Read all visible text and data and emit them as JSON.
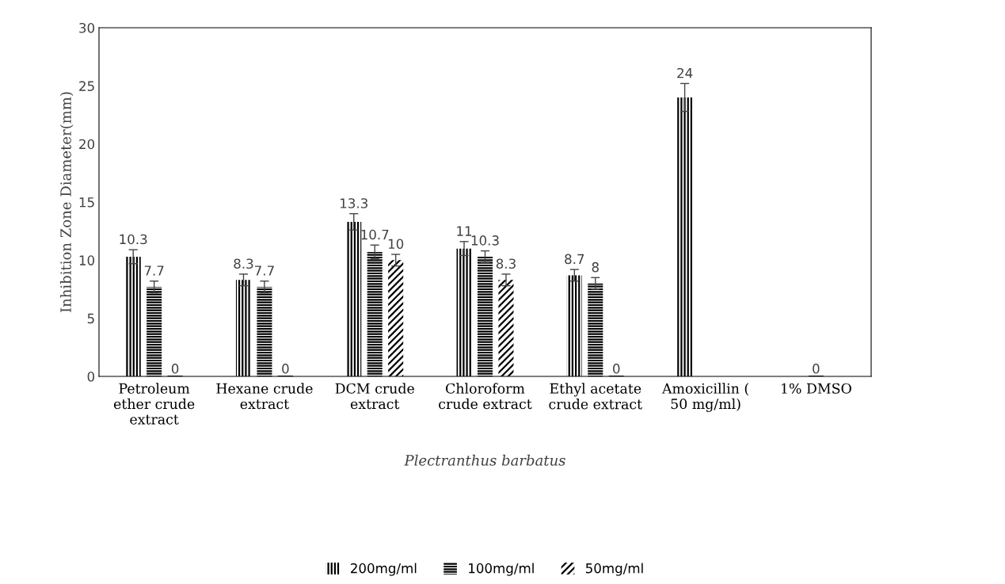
{
  "chart_data": {
    "type": "bar",
    "categories": [
      "Petroleum\nether crude\nextract",
      "Hexane crude\nextract",
      "DCM crude\nextract",
      "Chloroform\ncrude extract",
      "Ethyl acetate\ncrude extract",
      "Amoxicillin (\n50 mg/ml)",
      "1% DMSO"
    ],
    "series": [
      {
        "name": "200mg/ml",
        "color": "#000000",
        "values": [
          10.3,
          8.3,
          13.3,
          11,
          8.7,
          24,
          null
        ],
        "errors": [
          0.6,
          0.5,
          0.7,
          0.6,
          0.5,
          1.2,
          null
        ]
      },
      {
        "name": "100mg/ml",
        "color": "#000000",
        "values": [
          7.7,
          7.7,
          10.7,
          10.3,
          8,
          null,
          0
        ],
        "errors": [
          0.5,
          0.5,
          0.6,
          0.5,
          0.5,
          null,
          null
        ]
      },
      {
        "name": "50mg/ml",
        "color": "#000000",
        "values": [
          0,
          0,
          10,
          8.3,
          0,
          null,
          null
        ],
        "errors": [
          null,
          null,
          0.5,
          0.5,
          null,
          null,
          null
        ]
      }
    ],
    "xlabel": "Plectranthus barbatus",
    "ylabel": "Inhibition Zone Diameter(mm)",
    "ylim": [
      0,
      30
    ],
    "yticks": [
      0,
      5,
      10,
      15,
      20,
      25,
      30
    ],
    "data_labels": true,
    "grid": false,
    "legend": "bottom"
  }
}
